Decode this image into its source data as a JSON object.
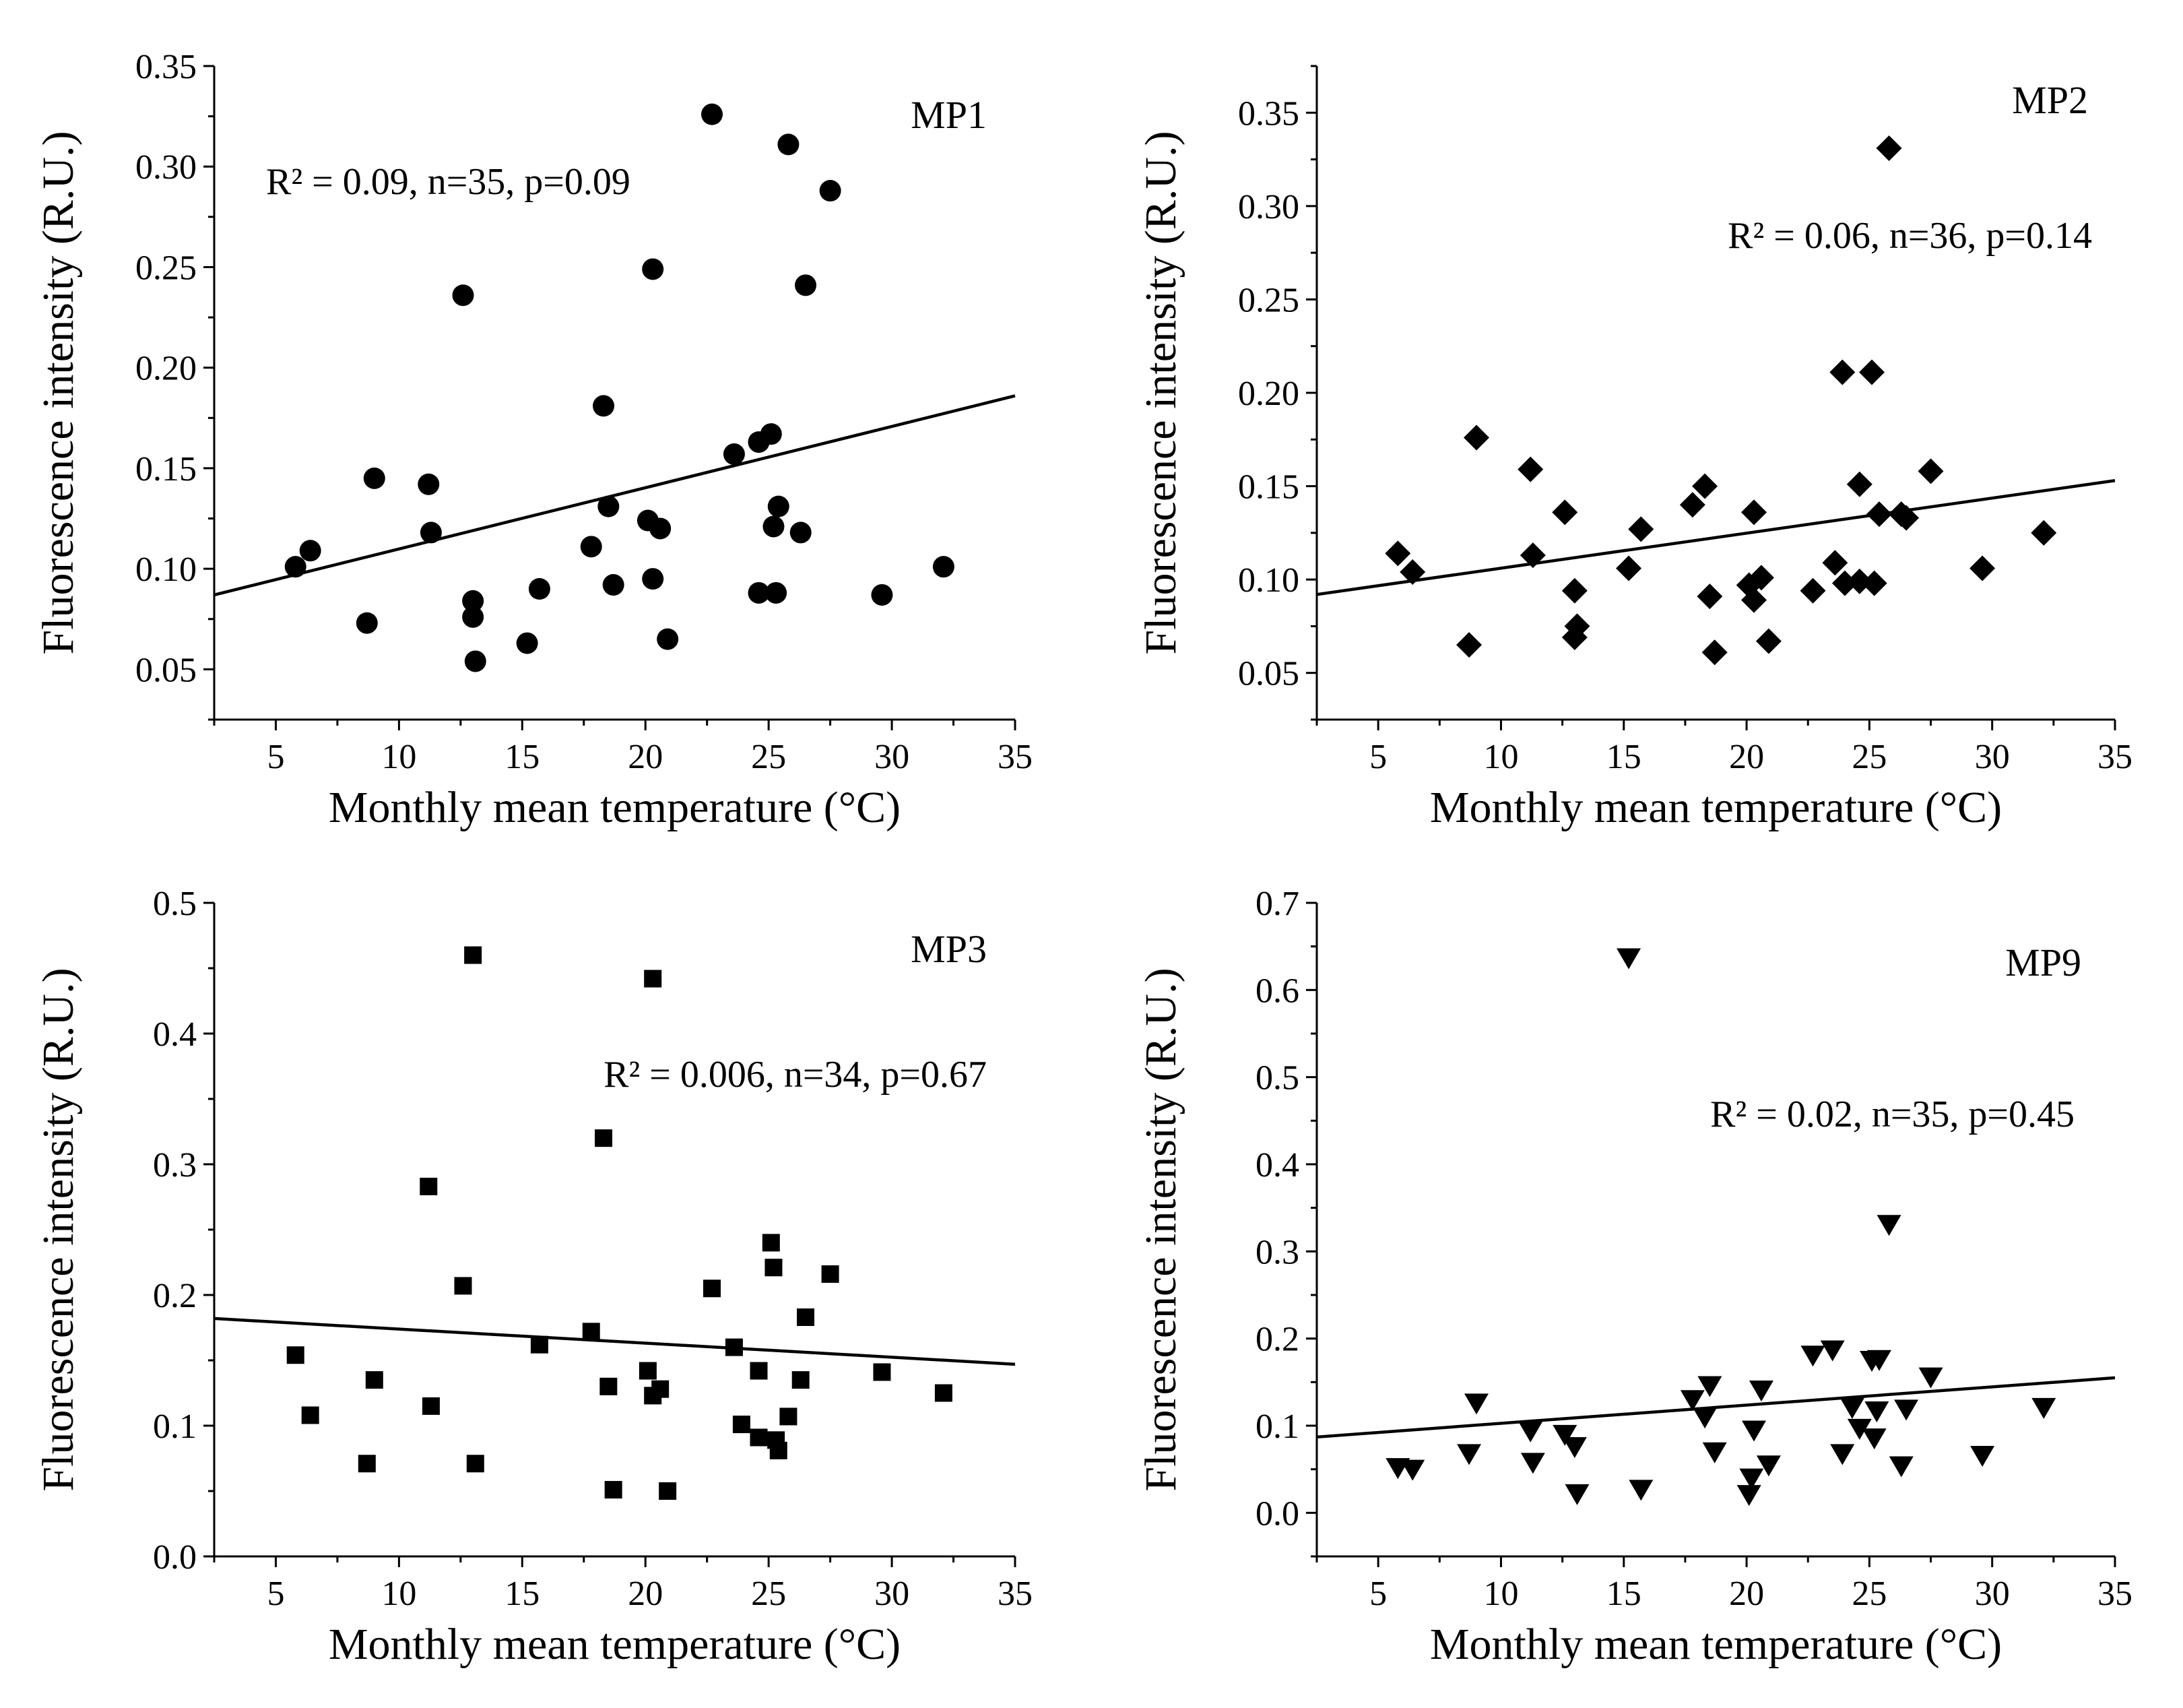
{
  "figure": {
    "background": "#ffffff",
    "ink": "#000000"
  },
  "chart_data": [
    {
      "type": "scatter",
      "panel_label": "MP1",
      "marker": "circle",
      "xlabel": "Monthly mean temperature (°C)",
      "ylabel": "Fluorescence intensity (R.U.)",
      "xlim": [
        2.5,
        35
      ],
      "ylim": [
        0.025,
        0.35
      ],
      "xticks": [
        5,
        10,
        15,
        20,
        25,
        30,
        35
      ],
      "yticks": [
        0.05,
        0.1,
        0.15,
        0.2,
        0.25,
        0.3,
        0.35
      ],
      "ytick_labels": [
        "0.05",
        "0.10",
        "0.15",
        "0.20",
        "0.25",
        "0.30",
        "0.35"
      ],
      "stats": "R² = 0.09, n=35, p=0.09",
      "fit_line": {
        "x": [
          2.5,
          35
        ],
        "y": [
          0.087,
          0.186
        ]
      },
      "points": [
        {
          "x": 5.8,
          "y": 0.101
        },
        {
          "x": 6.4,
          "y": 0.109
        },
        {
          "x": 8.7,
          "y": 0.073
        },
        {
          "x": 9.0,
          "y": 0.145
        },
        {
          "x": 11.2,
          "y": 0.142
        },
        {
          "x": 11.3,
          "y": 0.118
        },
        {
          "x": 12.6,
          "y": 0.236
        },
        {
          "x": 13.0,
          "y": 0.084
        },
        {
          "x": 13.0,
          "y": 0.076
        },
        {
          "x": 13.1,
          "y": 0.054
        },
        {
          "x": 15.2,
          "y": 0.063
        },
        {
          "x": 15.7,
          "y": 0.09
        },
        {
          "x": 17.8,
          "y": 0.111
        },
        {
          "x": 18.3,
          "y": 0.181
        },
        {
          "x": 18.5,
          "y": 0.131
        },
        {
          "x": 18.7,
          "y": 0.092
        },
        {
          "x": 20.1,
          "y": 0.124
        },
        {
          "x": 20.3,
          "y": 0.249
        },
        {
          "x": 20.3,
          "y": 0.095
        },
        {
          "x": 20.6,
          "y": 0.12
        },
        {
          "x": 20.9,
          "y": 0.065
        },
        {
          "x": 22.7,
          "y": 0.326
        },
        {
          "x": 23.6,
          "y": 0.157
        },
        {
          "x": 24.6,
          "y": 0.163
        },
        {
          "x": 24.6,
          "y": 0.088
        },
        {
          "x": 25.1,
          "y": 0.167
        },
        {
          "x": 25.2,
          "y": 0.121
        },
        {
          "x": 25.3,
          "y": 0.088
        },
        {
          "x": 25.4,
          "y": 0.131
        },
        {
          "x": 25.8,
          "y": 0.311
        },
        {
          "x": 26.3,
          "y": 0.118
        },
        {
          "x": 26.5,
          "y": 0.241
        },
        {
          "x": 27.5,
          "y": 0.288
        },
        {
          "x": 29.6,
          "y": 0.087
        },
        {
          "x": 32.1,
          "y": 0.101
        }
      ]
    },
    {
      "type": "scatter",
      "panel_label": "MP2",
      "marker": "diamond",
      "xlabel": "Monthly mean temperature (°C)",
      "ylabel": "Fluorescence intensity (R.U.)",
      "xlim": [
        2.5,
        35
      ],
      "ylim": [
        0.025,
        0.375
      ],
      "xticks": [
        5,
        10,
        15,
        20,
        25,
        30,
        35
      ],
      "yticks": [
        0.05,
        0.1,
        0.15,
        0.2,
        0.25,
        0.3,
        0.35
      ],
      "ytick_labels": [
        "0.05",
        "0.10",
        "0.15",
        "0.20",
        "0.25",
        "0.30",
        "0.35"
      ],
      "stats": "R² = 0.06, n=36, p=0.14",
      "fit_line": {
        "x": [
          2.5,
          35
        ],
        "y": [
          0.092,
          0.153
        ]
      },
      "points": [
        {
          "x": 5.8,
          "y": 0.114
        },
        {
          "x": 6.4,
          "y": 0.104
        },
        {
          "x": 8.7,
          "y": 0.065
        },
        {
          "x": 9.0,
          "y": 0.176
        },
        {
          "x": 11.2,
          "y": 0.159
        },
        {
          "x": 11.3,
          "y": 0.113
        },
        {
          "x": 12.6,
          "y": 0.136
        },
        {
          "x": 13.0,
          "y": 0.094
        },
        {
          "x": 13.0,
          "y": 0.069
        },
        {
          "x": 13.1,
          "y": 0.075
        },
        {
          "x": 15.2,
          "y": 0.106
        },
        {
          "x": 15.7,
          "y": 0.127
        },
        {
          "x": 17.8,
          "y": 0.14
        },
        {
          "x": 18.3,
          "y": 0.15
        },
        {
          "x": 18.5,
          "y": 0.091
        },
        {
          "x": 18.7,
          "y": 0.061
        },
        {
          "x": 20.1,
          "y": 0.097
        },
        {
          "x": 20.3,
          "y": 0.136
        },
        {
          "x": 20.3,
          "y": 0.089
        },
        {
          "x": 20.6,
          "y": 0.101
        },
        {
          "x": 20.9,
          "y": 0.067
        },
        {
          "x": 22.7,
          "y": 0.094
        },
        {
          "x": 23.6,
          "y": 0.109
        },
        {
          "x": 23.9,
          "y": 0.211
        },
        {
          "x": 24.6,
          "y": 0.151
        },
        {
          "x": 24.6,
          "y": 0.099
        },
        {
          "x": 25.1,
          "y": 0.211
        },
        {
          "x": 25.2,
          "y": 0.098
        },
        {
          "x": 25.4,
          "y": 0.135
        },
        {
          "x": 25.8,
          "y": 0.331
        },
        {
          "x": 26.3,
          "y": 0.135
        },
        {
          "x": 26.5,
          "y": 0.133
        },
        {
          "x": 27.5,
          "y": 0.158
        },
        {
          "x": 29.6,
          "y": 0.106
        },
        {
          "x": 32.1,
          "y": 0.125
        },
        {
          "x": 24.0,
          "y": 0.098
        }
      ]
    },
    {
      "type": "scatter",
      "panel_label": "MP3",
      "marker": "square",
      "xlabel": "Monthly mean temperature (°C)",
      "ylabel": "Fluorescence intensity (R.U.)",
      "xlim": [
        2.5,
        35
      ],
      "ylim": [
        0,
        0.5
      ],
      "xticks": [
        5,
        10,
        15,
        20,
        25,
        30,
        35
      ],
      "yticks": [
        0.0,
        0.1,
        0.2,
        0.3,
        0.4,
        0.5
      ],
      "ytick_labels": [
        "0.0",
        "0.1",
        "0.2",
        "0.3",
        "0.4",
        "0.5"
      ],
      "stats": "R² = 0.006, n=34, p=0.67",
      "fit_line": {
        "x": [
          2.5,
          35
        ],
        "y": [
          0.182,
          0.147
        ]
      },
      "points": [
        {
          "x": 5.8,
          "y": 0.154
        },
        {
          "x": 6.4,
          "y": 0.108
        },
        {
          "x": 8.7,
          "y": 0.071
        },
        {
          "x": 9.0,
          "y": 0.135
        },
        {
          "x": 11.2,
          "y": 0.283
        },
        {
          "x": 11.3,
          "y": 0.115
        },
        {
          "x": 12.6,
          "y": 0.207
        },
        {
          "x": 13.0,
          "y": 0.46
        },
        {
          "x": 13.1,
          "y": 0.071
        },
        {
          "x": 15.7,
          "y": 0.162
        },
        {
          "x": 17.8,
          "y": 0.172
        },
        {
          "x": 18.3,
          "y": 0.32
        },
        {
          "x": 18.5,
          "y": 0.13
        },
        {
          "x": 18.7,
          "y": 0.051
        },
        {
          "x": 20.1,
          "y": 0.142
        },
        {
          "x": 20.3,
          "y": 0.442
        },
        {
          "x": 20.3,
          "y": 0.123
        },
        {
          "x": 20.6,
          "y": 0.128
        },
        {
          "x": 20.9,
          "y": 0.05
        },
        {
          "x": 22.7,
          "y": 0.205
        },
        {
          "x": 23.6,
          "y": 0.16
        },
        {
          "x": 23.9,
          "y": 0.101
        },
        {
          "x": 24.6,
          "y": 0.142
        },
        {
          "x": 24.6,
          "y": 0.091
        },
        {
          "x": 25.1,
          "y": 0.24
        },
        {
          "x": 25.2,
          "y": 0.221
        },
        {
          "x": 25.3,
          "y": 0.089
        },
        {
          "x": 25.4,
          "y": 0.081
        },
        {
          "x": 25.8,
          "y": 0.107
        },
        {
          "x": 26.3,
          "y": 0.135
        },
        {
          "x": 26.5,
          "y": 0.183
        },
        {
          "x": 27.5,
          "y": 0.216
        },
        {
          "x": 29.6,
          "y": 0.141
        },
        {
          "x": 32.1,
          "y": 0.125
        }
      ]
    },
    {
      "type": "scatter",
      "panel_label": "MP9",
      "marker": "triangle-down",
      "xlabel": "Monthly mean temperature (°C)",
      "ylabel": "Fluorescence intensity (R.U.)",
      "xlim": [
        2.5,
        35
      ],
      "ylim": [
        -0.05,
        0.7
      ],
      "xticks": [
        5,
        10,
        15,
        20,
        25,
        30,
        35
      ],
      "yticks": [
        0.0,
        0.1,
        0.2,
        0.3,
        0.4,
        0.5,
        0.6,
        0.7
      ],
      "ytick_labels": [
        "0.0",
        "0.1",
        "0.2",
        "0.3",
        "0.4",
        "0.5",
        "0.6",
        "0.7"
      ],
      "stats": "R² = 0.02, n=35, p=0.45",
      "fit_line": {
        "x": [
          2.5,
          35
        ],
        "y": [
          0.087,
          0.155
        ]
      },
      "points": [
        {
          "x": 5.8,
          "y": 0.052
        },
        {
          "x": 6.4,
          "y": 0.05
        },
        {
          "x": 8.7,
          "y": 0.068
        },
        {
          "x": 9.0,
          "y": 0.126
        },
        {
          "x": 11.2,
          "y": 0.094
        },
        {
          "x": 11.3,
          "y": 0.058
        },
        {
          "x": 12.6,
          "y": 0.09
        },
        {
          "x": 13.0,
          "y": 0.076
        },
        {
          "x": 13.1,
          "y": 0.022
        },
        {
          "x": 15.2,
          "y": 0.637
        },
        {
          "x": 15.7,
          "y": 0.027
        },
        {
          "x": 17.8,
          "y": 0.13
        },
        {
          "x": 18.3,
          "y": 0.11
        },
        {
          "x": 18.5,
          "y": 0.146
        },
        {
          "x": 18.7,
          "y": 0.07
        },
        {
          "x": 20.1,
          "y": 0.021
        },
        {
          "x": 20.2,
          "y": 0.04
        },
        {
          "x": 20.3,
          "y": 0.095
        },
        {
          "x": 20.6,
          "y": 0.141
        },
        {
          "x": 20.9,
          "y": 0.055
        },
        {
          "x": 22.7,
          "y": 0.181
        },
        {
          "x": 23.5,
          "y": 0.187
        },
        {
          "x": 23.9,
          "y": 0.068
        },
        {
          "x": 24.3,
          "y": 0.121
        },
        {
          "x": 24.6,
          "y": 0.097
        },
        {
          "x": 25.1,
          "y": 0.175
        },
        {
          "x": 25.2,
          "y": 0.086
        },
        {
          "x": 25.3,
          "y": 0.117
        },
        {
          "x": 25.4,
          "y": 0.176
        },
        {
          "x": 25.8,
          "y": 0.331
        },
        {
          "x": 26.3,
          "y": 0.054
        },
        {
          "x": 26.5,
          "y": 0.119
        },
        {
          "x": 27.5,
          "y": 0.156
        },
        {
          "x": 29.6,
          "y": 0.066
        },
        {
          "x": 32.1,
          "y": 0.121
        }
      ]
    }
  ]
}
